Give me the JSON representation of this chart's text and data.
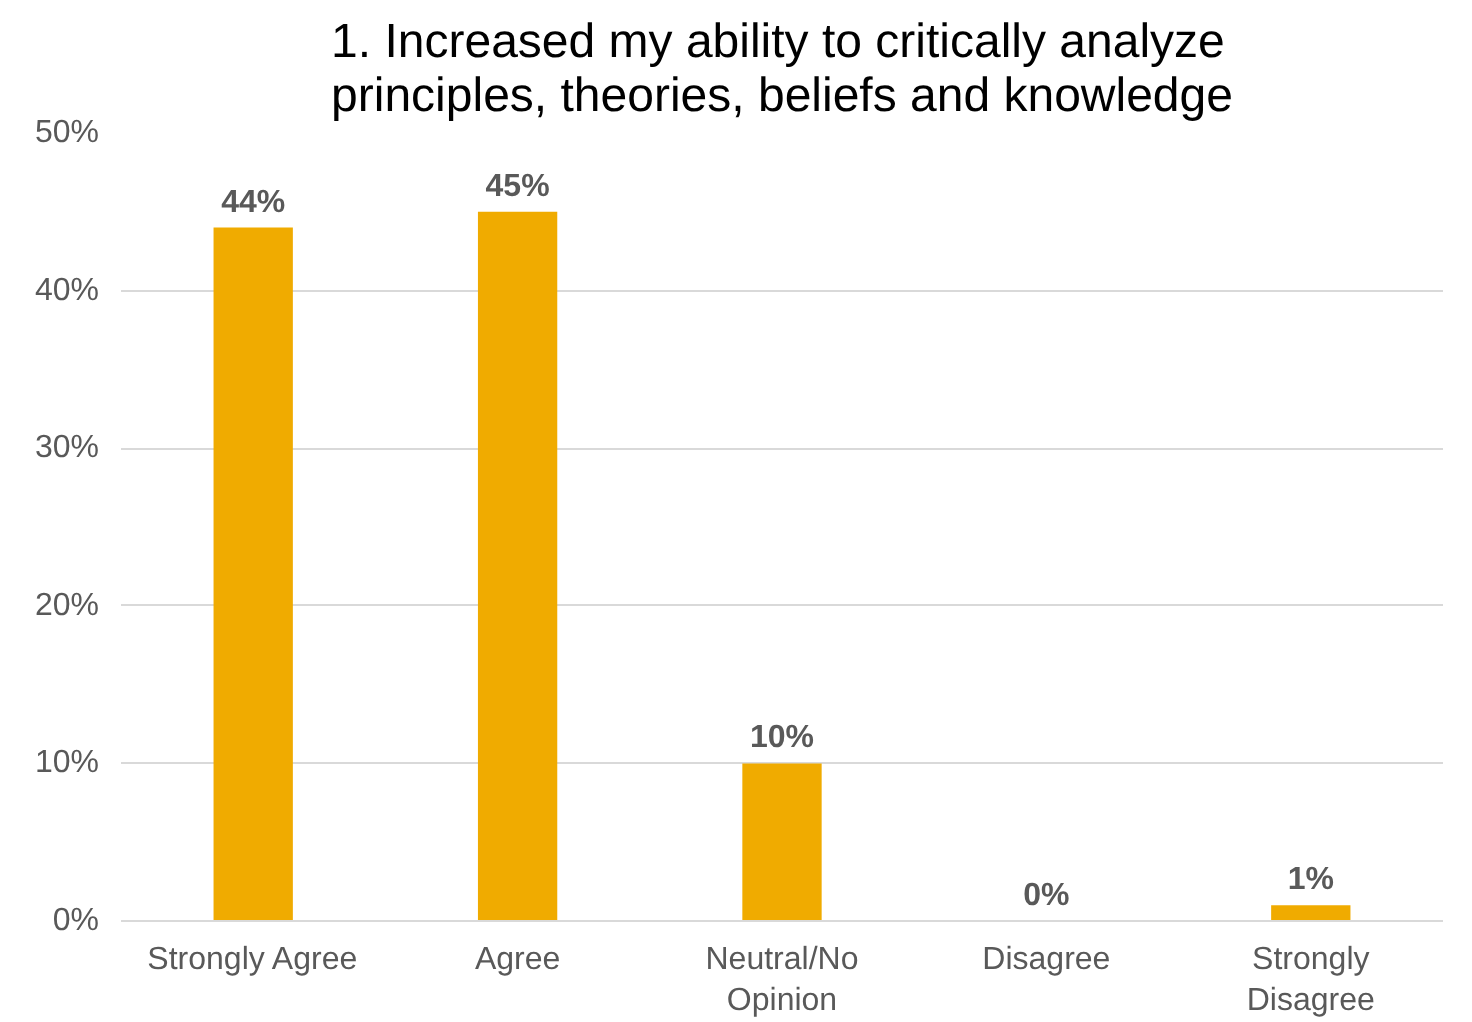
{
  "chart_data": {
    "type": "bar",
    "title": "1. Increased my ability to critically analyze\nprinciples, theories, beliefs and knowledge",
    "categories": [
      "Strongly Agree",
      "Agree",
      "Neutral/No\nOpinion",
      "Disagree",
      "Strongly\nDisagree"
    ],
    "values": [
      44,
      45,
      10,
      0,
      1
    ],
    "color": "#f0ab00",
    "ylim": [
      0,
      50
    ],
    "yticks": [
      {
        "value": 0,
        "label": "0%"
      },
      {
        "value": 10,
        "label": "10%"
      },
      {
        "value": 20,
        "label": "20%"
      },
      {
        "value": 30,
        "label": "30%"
      },
      {
        "value": 40,
        "label": "40%"
      },
      {
        "value": 50,
        "label": "50%"
      }
    ],
    "value_labels": [
      "44%",
      "45%",
      "10%",
      "0%",
      "1%"
    ],
    "grid": "y"
  }
}
